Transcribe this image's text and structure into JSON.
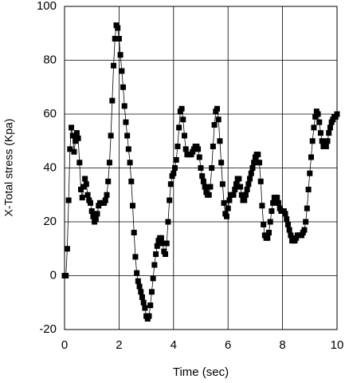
{
  "chart_data": {
    "type": "line",
    "xlabel": "Time (sec)",
    "ylabel": "X-Total stress (Kpa)",
    "xlim": [
      0,
      10
    ],
    "xticks": [
      0,
      2,
      4,
      6,
      8,
      10
    ],
    "ylim": [
      -20,
      100
    ],
    "yticks": [
      -20,
      0,
      20,
      40,
      60,
      80,
      100
    ],
    "grid": true,
    "series": [
      {
        "color": "#000000",
        "x": [
          0,
          0.05,
          0.1,
          0.15,
          0.2,
          0.25,
          0.3,
          0.35,
          0.4,
          0.45,
          0.5,
          0.55,
          0.6,
          0.65,
          0.7,
          0.75,
          0.8,
          0.85,
          0.9,
          0.95,
          1,
          1.05,
          1.1,
          1.15,
          1.2,
          1.25,
          1.3,
          1.35,
          1.4,
          1.45,
          1.5,
          1.55,
          1.6,
          1.65,
          1.7,
          1.75,
          1.8,
          1.85,
          1.9,
          1.95,
          2,
          2.05,
          2.1,
          2.15,
          2.2,
          2.25,
          2.3,
          2.35,
          2.4,
          2.45,
          2.5,
          2.55,
          2.6,
          2.65,
          2.7,
          2.75,
          2.8,
          2.85,
          2.9,
          2.95,
          3,
          3.05,
          3.1,
          3.15,
          3.2,
          3.25,
          3.3,
          3.35,
          3.4,
          3.45,
          3.5,
          3.55,
          3.6,
          3.65,
          3.7,
          3.75,
          3.8,
          3.85,
          3.9,
          3.95,
          4,
          4.05,
          4.1,
          4.15,
          4.2,
          4.25,
          4.3,
          4.35,
          4.4,
          4.45,
          4.5,
          4.55,
          4.6,
          4.65,
          4.7,
          4.75,
          4.8,
          4.85,
          4.9,
          4.95,
          5,
          5.05,
          5.1,
          5.15,
          5.2,
          5.25,
          5.3,
          5.35,
          5.4,
          5.45,
          5.5,
          5.55,
          5.6,
          5.65,
          5.7,
          5.75,
          5.8,
          5.85,
          5.9,
          5.95,
          6,
          6.05,
          6.1,
          6.15,
          6.2,
          6.25,
          6.3,
          6.35,
          6.4,
          6.45,
          6.5,
          6.55,
          6.6,
          6.65,
          6.7,
          6.75,
          6.8,
          6.85,
          6.9,
          6.95,
          7,
          7.05,
          7.1,
          7.15,
          7.2,
          7.25,
          7.3,
          7.35,
          7.4,
          7.45,
          7.5,
          7.55,
          7.6,
          7.65,
          7.7,
          7.75,
          7.8,
          7.85,
          7.9,
          7.95,
          8,
          8.05,
          8.1,
          8.15,
          8.2,
          8.25,
          8.3,
          8.35,
          8.4,
          8.45,
          8.5,
          8.55,
          8.6,
          8.65,
          8.7,
          8.75,
          8.8,
          8.85,
          8.9,
          8.95,
          9,
          9.05,
          9.1,
          9.15,
          9.2,
          9.25,
          9.3,
          9.35,
          9.4,
          9.45,
          9.5,
          9.55,
          9.6,
          9.65,
          9.7,
          9.75,
          9.8,
          9.85,
          9.9,
          9.95,
          10
        ],
        "values": [
          0,
          0,
          10,
          28,
          47,
          55,
          52,
          46,
          50,
          53,
          51,
          42,
          32,
          29,
          33,
          36,
          34,
          30,
          28,
          27,
          24,
          22,
          20,
          21,
          23,
          26,
          27,
          27,
          27,
          27,
          28,
          30,
          35,
          42,
          52,
          65,
          78,
          88,
          93,
          92,
          88,
          82,
          76,
          70,
          63,
          57,
          52,
          47,
          42,
          35,
          26,
          16,
          7,
          1,
          -2,
          -4,
          -6,
          -8,
          -10,
          -12,
          -15,
          -16,
          -15,
          -11,
          -6,
          -1,
          4,
          8,
          11,
          13,
          14,
          14,
          12,
          9,
          8,
          12,
          20,
          28,
          34,
          37,
          38,
          40,
          43,
          48,
          55,
          61,
          62,
          58,
          52,
          47,
          45,
          45,
          45,
          45,
          46,
          47,
          48,
          48,
          47,
          44,
          40,
          37,
          35,
          33,
          31,
          30,
          30,
          33,
          40,
          48,
          56,
          61,
          62,
          58,
          50,
          42,
          34,
          27,
          23,
          22,
          25,
          28,
          30,
          30,
          30,
          32,
          34,
          36,
          36,
          33,
          30,
          28,
          28,
          30,
          32,
          34,
          36,
          38,
          40,
          42,
          44,
          45,
          45,
          42,
          35,
          26,
          19,
          15,
          14,
          14,
          16,
          20,
          24,
          27,
          29,
          29,
          29,
          27,
          25,
          24,
          24,
          24,
          23,
          21,
          19,
          17,
          15,
          13,
          13,
          13,
          14,
          15,
          15,
          15,
          15,
          16,
          17,
          20,
          25,
          32,
          38,
          44,
          50,
          55,
          59,
          61,
          60,
          57,
          53,
          50,
          48,
          48,
          48,
          50,
          53,
          55,
          57,
          58,
          59,
          59,
          60
        ]
      }
    ]
  }
}
